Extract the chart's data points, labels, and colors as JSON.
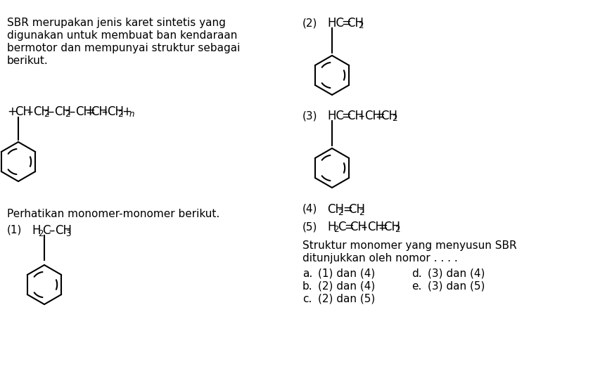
{
  "bg_color": "#ffffff",
  "text_color": "#000000",
  "desc_lines": [
    "SBR merupakan jenis karet sintetis yang",
    "digunakan untuk membuat ban kendaraan",
    "bermotor dan mempunyai struktur sebagai",
    "berikut."
  ],
  "perhatikan_text": "Perhatikan monomer-monomer berikut.",
  "answer_line1": "Struktur monomer yang menyusun SBR",
  "answer_line2": "ditunjukkan oleh nomor . . . .",
  "choices_left": [
    [
      "a.",
      "(1) dan (4)"
    ],
    [
      "b.",
      "(2) dan (4)"
    ],
    [
      "c.",
      "(2) dan (5)"
    ]
  ],
  "choices_right": [
    [
      "d.",
      "(3) dan (4)"
    ],
    [
      "e.",
      "(3) dan (5)"
    ]
  ],
  "fs_body": 11,
  "fs_formula": 12,
  "fs_sub": 8.5
}
